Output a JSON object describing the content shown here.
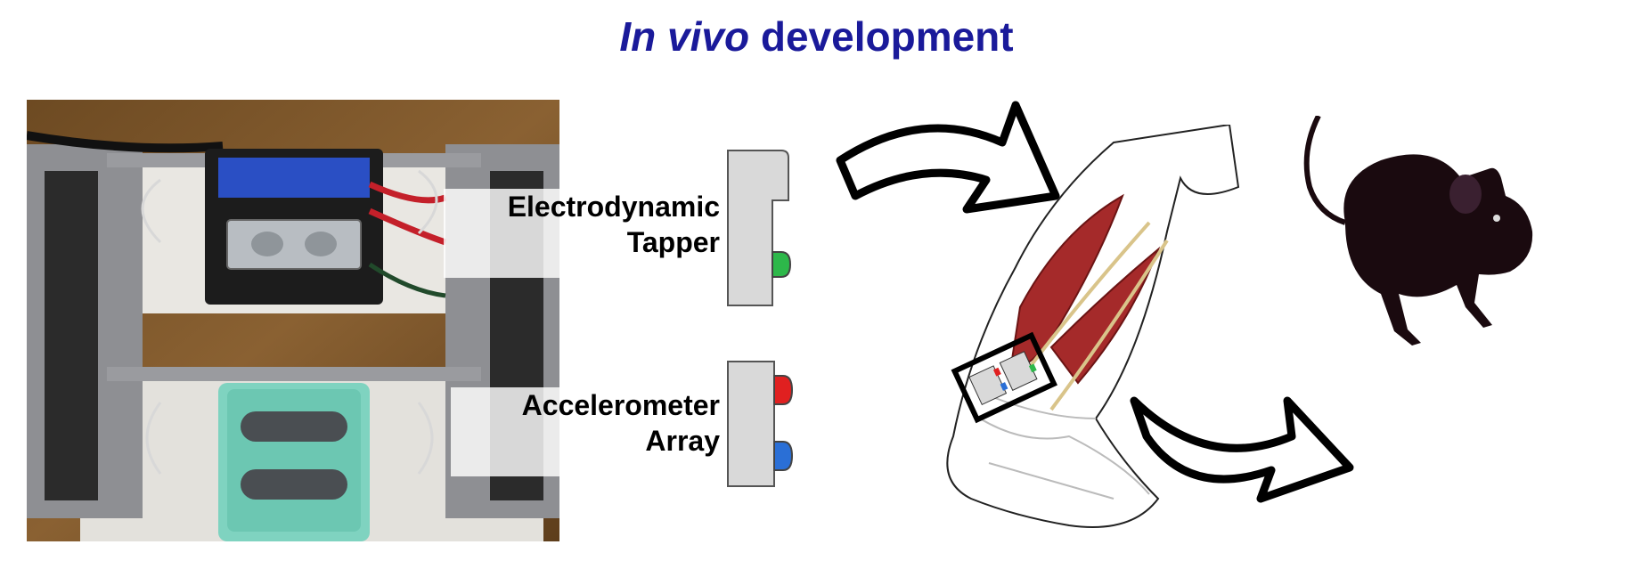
{
  "title": {
    "italic": "In vivo",
    "rest": " development"
  },
  "labels": {
    "tapper_line1": "Electrodynamic",
    "tapper_line2": "Tapper",
    "accel_line1": "Accelerometer",
    "accel_line2": "Array"
  },
  "colors": {
    "title": "#1a1a9a",
    "tapper_tip": "#2db84a",
    "accel_top": "#e02020",
    "accel_bottom": "#2a6fd6",
    "muscle": "#a52a2a",
    "mouse": "#1a0a0f"
  }
}
